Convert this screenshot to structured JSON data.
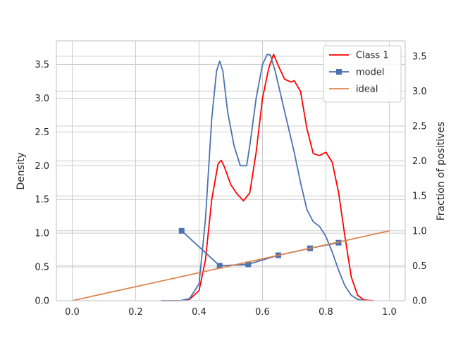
{
  "chart_data": {
    "type": "line",
    "xlabel": "",
    "ylabel_left": "Density",
    "ylabel_right": "Fraction of positives",
    "xlim": [
      -0.05,
      1.05
    ],
    "ylim_left": [
      0,
      3.85
    ],
    "ylim_right": [
      0,
      3.72
    ],
    "xticks": [
      "0.0",
      "0.2",
      "0.4",
      "0.6",
      "0.8",
      "1.0"
    ],
    "xtick_values": [
      0.0,
      0.2,
      0.4,
      0.6,
      0.8,
      1.0
    ],
    "yticks_left": [
      "0.0",
      "0.5",
      "1.0",
      "1.5",
      "2.0",
      "2.5",
      "3.0",
      "3.5"
    ],
    "ytick_values_left": [
      0.0,
      0.5,
      1.0,
      1.5,
      2.0,
      2.5,
      3.0,
      3.5
    ],
    "yticks_right": [
      "0.0",
      "0.5",
      "1.0",
      "1.5",
      "2.0",
      "2.5",
      "3.0",
      "3.5"
    ],
    "ytick_values_right": [
      0.0,
      0.5,
      1.0,
      1.5,
      2.0,
      2.5,
      3.0,
      3.5
    ],
    "grid": true,
    "legend_position": "top-right",
    "series": [
      {
        "name": "Class 1",
        "axis": "left",
        "color": "#ff0000",
        "marker": "none",
        "x": [
          0.28,
          0.34,
          0.37,
          0.4,
          0.42,
          0.44,
          0.46,
          0.47,
          0.48,
          0.5,
          0.52,
          0.54,
          0.56,
          0.58,
          0.6,
          0.62,
          0.635,
          0.65,
          0.67,
          0.69,
          0.7,
          0.72,
          0.74,
          0.76,
          0.78,
          0.8,
          0.82,
          0.84,
          0.86,
          0.88,
          0.9,
          0.92,
          0.95
        ],
        "y": [
          0.0,
          0.0,
          0.02,
          0.15,
          0.6,
          1.5,
          2.03,
          2.08,
          1.98,
          1.72,
          1.58,
          1.48,
          1.6,
          2.2,
          3.0,
          3.45,
          3.65,
          3.48,
          3.28,
          3.24,
          3.26,
          3.1,
          2.55,
          2.18,
          2.15,
          2.2,
          2.05,
          1.6,
          0.95,
          0.35,
          0.08,
          0.01,
          0.0
        ]
      },
      {
        "name": "",
        "axis": "left",
        "color": "#4c72b0",
        "marker": "none",
        "x": [
          0.28,
          0.34,
          0.37,
          0.4,
          0.42,
          0.44,
          0.455,
          0.465,
          0.475,
          0.49,
          0.51,
          0.53,
          0.55,
          0.56,
          0.58,
          0.6,
          0.615,
          0.625,
          0.64,
          0.66,
          0.68,
          0.7,
          0.72,
          0.74,
          0.76,
          0.78,
          0.8,
          0.82,
          0.84,
          0.86,
          0.88,
          0.9,
          0.92
        ],
        "y": [
          0.0,
          0.0,
          0.03,
          0.25,
          1.2,
          2.7,
          3.4,
          3.55,
          3.4,
          2.8,
          2.3,
          2.0,
          2.0,
          2.3,
          3.0,
          3.5,
          3.65,
          3.64,
          3.4,
          3.0,
          2.6,
          2.2,
          1.75,
          1.35,
          1.17,
          1.1,
          0.95,
          0.72,
          0.45,
          0.22,
          0.08,
          0.02,
          0.0
        ]
      },
      {
        "name": "model",
        "axis": "right",
        "color": "#4c72b0",
        "marker": "square",
        "x": [
          0.345,
          0.465,
          0.555,
          0.65,
          0.75,
          0.84
        ],
        "y": [
          1.0,
          0.5,
          0.52,
          0.65,
          0.75,
          0.83
        ]
      },
      {
        "name": "ideal",
        "axis": "right",
        "color": "#dd8452",
        "marker": "none",
        "x": [
          0.0,
          1.0
        ],
        "y": [
          0.0,
          1.0
        ]
      }
    ]
  }
}
